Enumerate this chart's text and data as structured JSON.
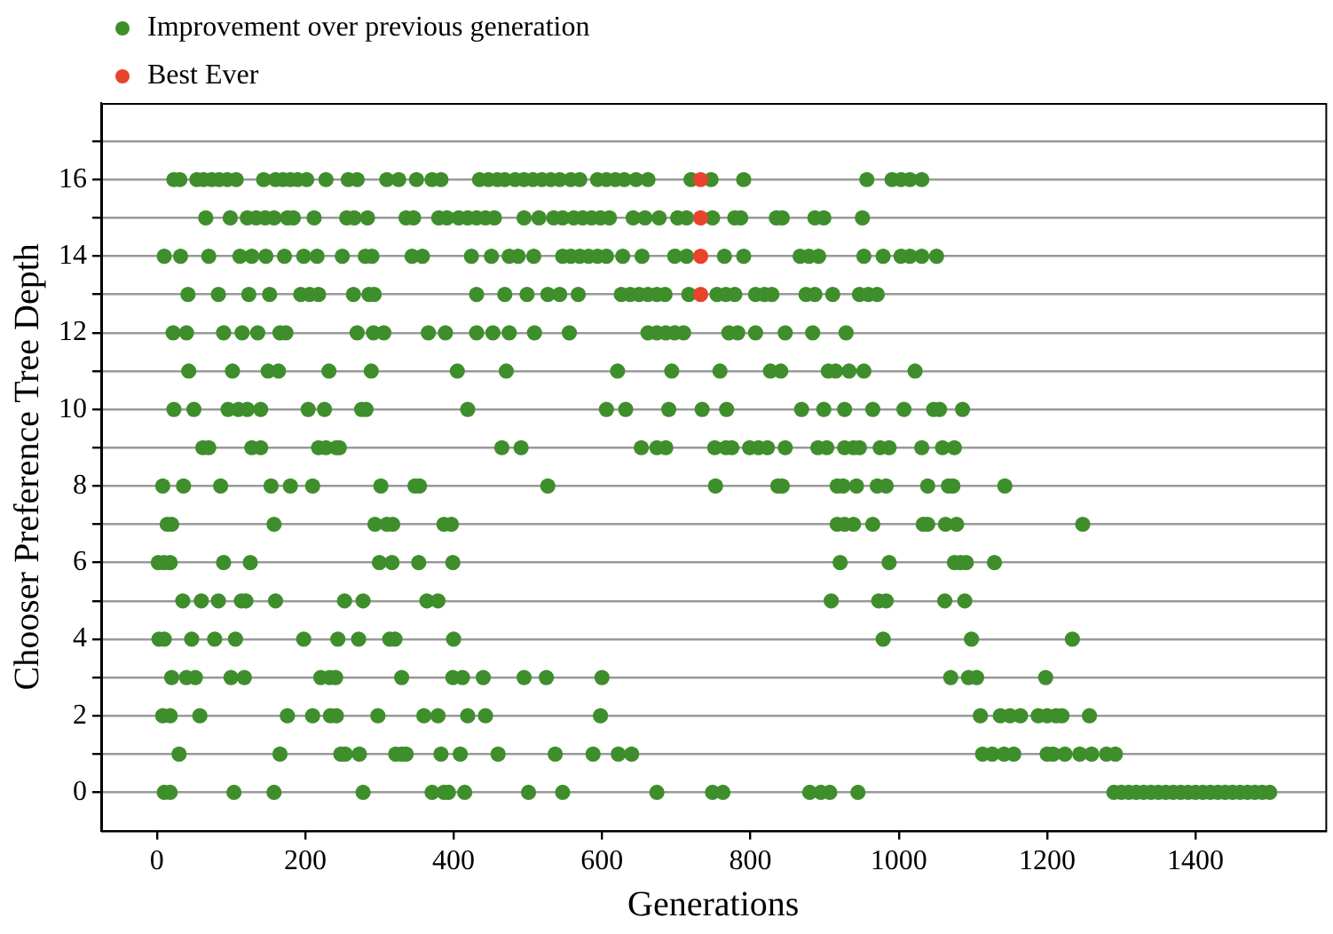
{
  "chart_data": {
    "type": "scatter",
    "xlabel": "Generations",
    "ylabel": "Chooser Preference Tree Depth",
    "xlim": [
      -75,
      1575
    ],
    "xticks": [
      0,
      200,
      400,
      600,
      800,
      1000,
      1200,
      1400
    ],
    "ylim": [
      -1,
      18
    ],
    "yticks": [
      0,
      {
        "value": 1,
        "label": null
      },
      2,
      {
        "value": 3,
        "label": null
      },
      4,
      {
        "value": 5,
        "label": null
      },
      6,
      {
        "value": 7,
        "label": null
      },
      8,
      {
        "value": 9,
        "label": null
      },
      10,
      {
        "value": 11,
        "label": null
      },
      12,
      {
        "value": 13,
        "label": null
      },
      14,
      {
        "value": 15,
        "label": null
      },
      16,
      {
        "value": 17,
        "label": null
      }
    ],
    "grid": "y",
    "legend": "top left",
    "marker": "circle",
    "series": [
      {
        "name": "Improvement over previous generation",
        "color": "#3e8e2c",
        "x": [
          23,
          31,
          54,
          63,
          74,
          84,
          95,
          107,
          144,
          160,
          170,
          180,
          190,
          202,
          228,
          258,
          270,
          310,
          326,
          350,
          371,
          383,
          435,
          447,
          459,
          469,
          483,
          495,
          507,
          519,
          531,
          543,
          558,
          570,
          594,
          606,
          618,
          630,
          646,
          662,
          720,
          747,
          791,
          957,
          991,
          1003,
          1015,
          1031,
          66,
          99,
          122,
          134,
          146,
          158,
          176,
          184,
          212,
          256,
          266,
          284,
          336,
          346,
          380,
          391,
          407,
          419,
          431,
          443,
          455,
          495,
          515,
          535,
          547,
          562,
          574,
          586,
          598,
          610,
          642,
          658,
          677,
          702,
          714,
          749,
          779,
          787,
          835,
          843,
          887,
          899,
          951,
          10,
          32,
          70,
          112,
          128,
          147,
          172,
          198,
          216,
          250,
          281,
          290,
          344,
          358,
          424,
          451,
          475,
          487,
          508,
          547,
          558,
          570,
          582,
          594,
          606,
          628,
          654,
          698,
          714,
          765,
          791,
          867,
          879,
          892,
          953,
          979,
          1003,
          1015,
          1031,
          1051,
          42,
          83,
          124,
          152,
          194,
          206,
          218,
          265,
          286,
          293,
          431,
          469,
          499,
          527,
          543,
          568,
          626,
          638,
          650,
          662,
          674,
          685,
          717,
          755,
          767,
          779,
          807,
          819,
          829,
          875,
          887,
          911,
          947,
          959,
          971,
          22,
          40,
          90,
          115,
          136,
          166,
          174,
          270,
          292,
          306,
          366,
          389,
          431,
          453,
          475,
          509,
          556,
          662,
          674,
          686,
          698,
          710,
          771,
          783,
          807,
          847,
          884,
          929,
          43,
          102,
          150,
          164,
          232,
          289,
          405,
          471,
          621,
          694,
          759,
          827,
          841,
          905,
          915,
          933,
          953,
          1022,
          23,
          50,
          96,
          110,
          122,
          140,
          204,
          226,
          276,
          282,
          419,
          606,
          632,
          690,
          735,
          768,
          869,
          899,
          927,
          965,
          1007,
          1047,
          1055,
          1086,
          62,
          70,
          128,
          140,
          218,
          228,
          242,
          246,
          465,
          491,
          653,
          674,
          686,
          752,
          767,
          775,
          799,
          811,
          823,
          847,
          891,
          903,
          927,
          939,
          947,
          975,
          987,
          1031,
          1059,
          1075,
          8,
          36,
          86,
          154,
          180,
          210,
          302,
          348,
          354,
          527,
          753,
          837,
          843,
          917,
          925,
          943,
          971,
          983,
          1039,
          1067,
          1073,
          1143,
          14,
          20,
          158,
          294,
          310,
          318,
          387,
          397,
          917,
          927,
          939,
          965,
          1033,
          1039,
          1063,
          1078,
          1248,
          2,
          10,
          18,
          90,
          126,
          300,
          317,
          353,
          399,
          921,
          987,
          1075,
          1083,
          1091,
          1129,
          35,
          60,
          83,
          114,
          120,
          160,
          253,
          278,
          364,
          379,
          909,
          973,
          983,
          1062,
          1089,
          3,
          10,
          47,
          78,
          106,
          198,
          244,
          272,
          314,
          321,
          400,
          979,
          1098,
          1234,
          20,
          40,
          52,
          100,
          118,
          221,
          233,
          241,
          330,
          399,
          412,
          440,
          495,
          525,
          600,
          1070,
          1094,
          1105,
          1198,
          8,
          18,
          58,
          176,
          210,
          234,
          242,
          298,
          360,
          379,
          419,
          443,
          598,
          1110,
          1137,
          1150,
          1164,
          1188,
          1200,
          1212,
          1220,
          1257,
          30,
          166,
          248,
          254,
          273,
          322,
          330,
          336,
          383,
          409,
          460,
          537,
          588,
          622,
          640,
          1113,
          1126,
          1142,
          1155,
          1200,
          1208,
          1224,
          1244,
          1260,
          1280,
          1292,
          10,
          18,
          104,
          158,
          278,
          371,
          387,
          393,
          415,
          501,
          547,
          674,
          749,
          763,
          880,
          895,
          907,
          945,
          1290,
          1300,
          1310,
          1320,
          1330,
          1340,
          1350,
          1360,
          1370,
          1380,
          1390,
          1400,
          1410,
          1420,
          1430,
          1440,
          1450,
          1460,
          1470,
          1480,
          1490,
          1500
        ],
        "values": [
          16,
          16,
          16,
          16,
          16,
          16,
          16,
          16,
          16,
          16,
          16,
          16,
          16,
          16,
          16,
          16,
          16,
          16,
          16,
          16,
          16,
          16,
          16,
          16,
          16,
          16,
          16,
          16,
          16,
          16,
          16,
          16,
          16,
          16,
          16,
          16,
          16,
          16,
          16,
          16,
          16,
          16,
          16,
          16,
          16,
          16,
          16,
          16,
          15,
          15,
          15,
          15,
          15,
          15,
          15,
          15,
          15,
          15,
          15,
          15,
          15,
          15,
          15,
          15,
          15,
          15,
          15,
          15,
          15,
          15,
          15,
          15,
          15,
          15,
          15,
          15,
          15,
          15,
          15,
          15,
          15,
          15,
          15,
          15,
          15,
          15,
          15,
          15,
          15,
          15,
          15,
          14,
          14,
          14,
          14,
          14,
          14,
          14,
          14,
          14,
          14,
          14,
          14,
          14,
          14,
          14,
          14,
          14,
          14,
          14,
          14,
          14,
          14,
          14,
          14,
          14,
          14,
          14,
          14,
          14,
          14,
          14,
          14,
          14,
          14,
          14,
          14,
          14,
          14,
          14,
          14,
          13,
          13,
          13,
          13,
          13,
          13,
          13,
          13,
          13,
          13,
          13,
          13,
          13,
          13,
          13,
          13,
          13,
          13,
          13,
          13,
          13,
          13,
          13,
          13,
          13,
          13,
          13,
          13,
          13,
          13,
          13,
          13,
          13,
          13,
          13,
          12,
          12,
          12,
          12,
          12,
          12,
          12,
          12,
          12,
          12,
          12,
          12,
          12,
          12,
          12,
          12,
          12,
          12,
          12,
          12,
          12,
          12,
          12,
          12,
          12,
          12,
          12,
          12,
          11,
          11,
          11,
          11,
          11,
          11,
          11,
          11,
          11,
          11,
          11,
          11,
          11,
          11,
          11,
          11,
          11,
          11,
          10,
          10,
          10,
          10,
          10,
          10,
          10,
          10,
          10,
          10,
          10,
          10,
          10,
          10,
          10,
          10,
          10,
          10,
          10,
          10,
          10,
          10,
          10,
          10,
          9,
          9,
          9,
          9,
          9,
          9,
          9,
          9,
          9,
          9,
          9,
          9,
          9,
          9,
          9,
          9,
          9,
          9,
          9,
          9,
          9,
          9,
          9,
          9,
          9,
          9,
          9,
          9,
          9,
          9,
          8,
          8,
          8,
          8,
          8,
          8,
          8,
          8,
          8,
          8,
          8,
          8,
          8,
          8,
          8,
          8,
          8,
          8,
          8,
          8,
          8,
          8,
          7,
          7,
          7,
          7,
          7,
          7,
          7,
          7,
          7,
          7,
          7,
          7,
          7,
          7,
          7,
          7,
          7,
          6,
          6,
          6,
          6,
          6,
          6,
          6,
          6,
          6,
          6,
          6,
          6,
          6,
          6,
          6,
          5,
          5,
          5,
          5,
          5,
          5,
          5,
          5,
          5,
          5,
          5,
          5,
          5,
          5,
          5,
          4,
          4,
          4,
          4,
          4,
          4,
          4,
          4,
          4,
          4,
          4,
          4,
          4,
          4,
          3,
          3,
          3,
          3,
          3,
          3,
          3,
          3,
          3,
          3,
          3,
          3,
          3,
          3,
          3,
          3,
          3,
          3,
          3,
          2,
          2,
          2,
          2,
          2,
          2,
          2,
          2,
          2,
          2,
          2,
          2,
          2,
          2,
          2,
          2,
          2,
          2,
          2,
          2,
          2,
          2,
          1,
          1,
          1,
          1,
          1,
          1,
          1,
          1,
          1,
          1,
          1,
          1,
          1,
          1,
          1,
          1,
          1,
          1,
          1,
          1,
          1,
          1,
          1,
          1,
          1,
          1,
          0,
          0,
          0,
          0,
          0,
          0,
          0,
          0,
          0,
          0,
          0,
          0,
          0,
          0,
          0,
          0,
          0,
          0,
          0,
          0,
          0,
          0,
          0,
          0,
          0,
          0,
          0,
          0,
          0,
          0,
          0,
          0,
          0,
          0,
          0,
          0,
          0,
          0,
          0,
          0
        ]
      },
      {
        "name": "Best Ever",
        "color": "#e8432d",
        "x": [
          733,
          733,
          733,
          733
        ],
        "values": [
          16,
          15,
          14,
          13
        ]
      }
    ]
  }
}
